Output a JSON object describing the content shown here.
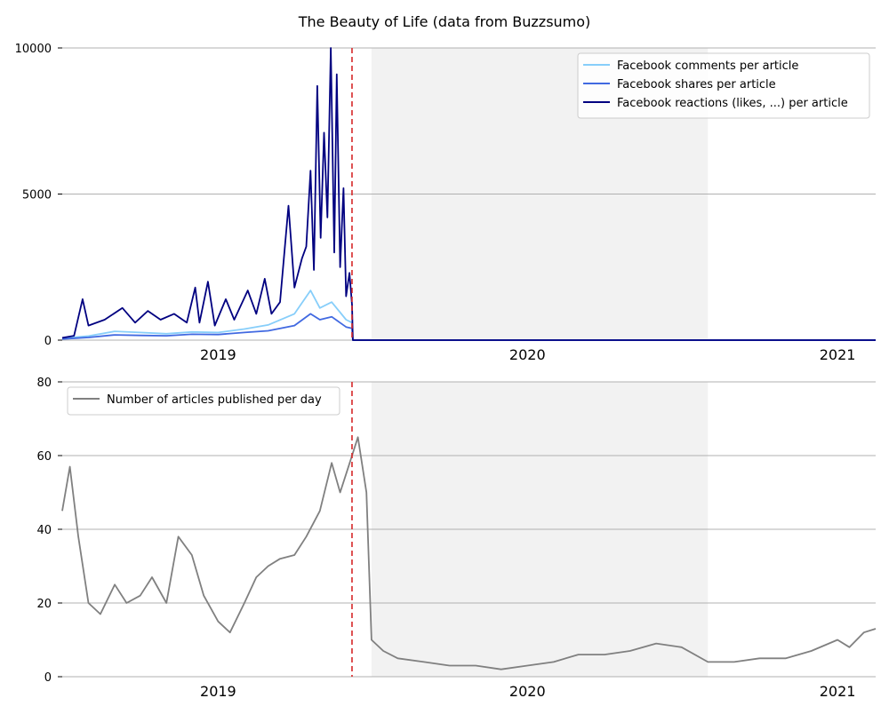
{
  "chart_data": {
    "title": "The Beauty of Life (data from Buzzsumo)",
    "x_tick_labels": [
      "2019",
      "2020",
      "2021"
    ],
    "x_tick_dates": [
      "2019-01-01",
      "2020-01-01",
      "2021-01-01"
    ],
    "x_range": [
      "2018-07-01",
      "2021-02-15"
    ],
    "vertical_marker_date": "2019-06-08",
    "shaded_period": [
      "2019-07-01",
      "2020-08-01"
    ],
    "colors": {
      "comments": "#87cefa",
      "shares": "#4169e1",
      "reactions": "#000080",
      "articles": "#808080",
      "marker": "#d62728",
      "shade": "#f2f2f2",
      "grid": "#b0b0b0"
    },
    "panels": [
      {
        "type": "line",
        "ylim": [
          0,
          10000
        ],
        "yticks": [
          0,
          5000,
          10000
        ],
        "yticklabels": [
          "0",
          "5000",
          "10000"
        ],
        "legend_position": "top-right",
        "series": [
          {
            "name": "Facebook comments per article",
            "key": "comments",
            "points": [
              [
                "2018-07-01",
                60
              ],
              [
                "2018-08-01",
                140
              ],
              [
                "2018-09-01",
                300
              ],
              [
                "2018-10-01",
                260
              ],
              [
                "2018-11-01",
                220
              ],
              [
                "2018-12-01",
                280
              ],
              [
                "2019-01-01",
                260
              ],
              [
                "2019-02-01",
                380
              ],
              [
                "2019-03-01",
                520
              ],
              [
                "2019-04-01",
                900
              ],
              [
                "2019-04-20",
                1700
              ],
              [
                "2019-05-01",
                1100
              ],
              [
                "2019-05-15",
                1300
              ],
              [
                "2019-06-01",
                700
              ],
              [
                "2019-06-08",
                600
              ],
              [
                "2019-06-09",
                0
              ],
              [
                "2021-02-15",
                0
              ]
            ]
          },
          {
            "name": "Facebook shares per article",
            "key": "shares",
            "points": [
              [
                "2018-07-01",
                40
              ],
              [
                "2018-08-01",
                90
              ],
              [
                "2018-09-01",
                180
              ],
              [
                "2018-10-01",
                160
              ],
              [
                "2018-11-01",
                150
              ],
              [
                "2018-12-01",
                200
              ],
              [
                "2019-01-01",
                190
              ],
              [
                "2019-02-01",
                260
              ],
              [
                "2019-03-01",
                320
              ],
              [
                "2019-04-01",
                500
              ],
              [
                "2019-04-20",
                900
              ],
              [
                "2019-05-01",
                700
              ],
              [
                "2019-05-15",
                800
              ],
              [
                "2019-06-01",
                450
              ],
              [
                "2019-06-08",
                400
              ],
              [
                "2019-06-09",
                0
              ],
              [
                "2021-02-15",
                0
              ]
            ]
          },
          {
            "name": "Facebook reactions (likes, ...) per article",
            "key": "reactions",
            "points": [
              [
                "2018-07-01",
                80
              ],
              [
                "2018-07-15",
                150
              ],
              [
                "2018-07-25",
                1400
              ],
              [
                "2018-08-01",
                500
              ],
              [
                "2018-08-20",
                700
              ],
              [
                "2018-09-10",
                1100
              ],
              [
                "2018-09-25",
                600
              ],
              [
                "2018-10-10",
                1000
              ],
              [
                "2018-10-25",
                700
              ],
              [
                "2018-11-10",
                900
              ],
              [
                "2018-11-25",
                600
              ],
              [
                "2018-12-05",
                1800
              ],
              [
                "2018-12-10",
                600
              ],
              [
                "2018-12-20",
                2000
              ],
              [
                "2018-12-28",
                500
              ],
              [
                "2019-01-10",
                1400
              ],
              [
                "2019-01-20",
                700
              ],
              [
                "2019-02-05",
                1700
              ],
              [
                "2019-02-15",
                900
              ],
              [
                "2019-02-25",
                2100
              ],
              [
                "2019-03-05",
                900
              ],
              [
                "2019-03-15",
                1300
              ],
              [
                "2019-03-25",
                4600
              ],
              [
                "2019-04-01",
                1800
              ],
              [
                "2019-04-10",
                2800
              ],
              [
                "2019-04-15",
                3200
              ],
              [
                "2019-04-20",
                5800
              ],
              [
                "2019-04-24",
                2400
              ],
              [
                "2019-04-28",
                8700
              ],
              [
                "2019-05-02",
                3500
              ],
              [
                "2019-05-06",
                7100
              ],
              [
                "2019-05-10",
                4200
              ],
              [
                "2019-05-14",
                10000
              ],
              [
                "2019-05-18",
                3000
              ],
              [
                "2019-05-21",
                9100
              ],
              [
                "2019-05-25",
                2500
              ],
              [
                "2019-05-29",
                5200
              ],
              [
                "2019-06-01",
                1500
              ],
              [
                "2019-06-05",
                2300
              ],
              [
                "2019-06-08",
                1200
              ],
              [
                "2019-06-09",
                0
              ],
              [
                "2021-02-15",
                0
              ]
            ]
          }
        ]
      },
      {
        "type": "line",
        "ylim": [
          0,
          80
        ],
        "yticks": [
          0,
          20,
          40,
          60,
          80
        ],
        "yticklabels": [
          "0",
          "20",
          "40",
          "60",
          "80"
        ],
        "legend_position": "top-left",
        "series": [
          {
            "name": "Number of articles published per day",
            "key": "articles",
            "points": [
              [
                "2018-07-01",
                45
              ],
              [
                "2018-07-10",
                57
              ],
              [
                "2018-07-20",
                38
              ],
              [
                "2018-08-01",
                20
              ],
              [
                "2018-08-15",
                17
              ],
              [
                "2018-09-01",
                25
              ],
              [
                "2018-09-15",
                20
              ],
              [
                "2018-10-01",
                22
              ],
              [
                "2018-10-15",
                27
              ],
              [
                "2018-11-01",
                20
              ],
              [
                "2018-11-15",
                38
              ],
              [
                "2018-12-01",
                33
              ],
              [
                "2018-12-15",
                22
              ],
              [
                "2019-01-01",
                15
              ],
              [
                "2019-01-15",
                12
              ],
              [
                "2019-02-01",
                20
              ],
              [
                "2019-02-15",
                27
              ],
              [
                "2019-03-01",
                30
              ],
              [
                "2019-03-15",
                32
              ],
              [
                "2019-04-01",
                33
              ],
              [
                "2019-04-15",
                38
              ],
              [
                "2019-05-01",
                45
              ],
              [
                "2019-05-15",
                58
              ],
              [
                "2019-05-25",
                50
              ],
              [
                "2019-06-01",
                55
              ],
              [
                "2019-06-08",
                60
              ],
              [
                "2019-06-15",
                65
              ],
              [
                "2019-06-25",
                50
              ],
              [
                "2019-07-01",
                10
              ],
              [
                "2019-07-15",
                7
              ],
              [
                "2019-08-01",
                5
              ],
              [
                "2019-09-01",
                4
              ],
              [
                "2019-10-01",
                3
              ],
              [
                "2019-11-01",
                3
              ],
              [
                "2019-12-01",
                2
              ],
              [
                "2020-01-01",
                3
              ],
              [
                "2020-02-01",
                4
              ],
              [
                "2020-03-01",
                6
              ],
              [
                "2020-04-01",
                6
              ],
              [
                "2020-05-01",
                7
              ],
              [
                "2020-06-01",
                9
              ],
              [
                "2020-07-01",
                8
              ],
              [
                "2020-08-01",
                4
              ],
              [
                "2020-09-01",
                4
              ],
              [
                "2020-10-01",
                5
              ],
              [
                "2020-11-01",
                5
              ],
              [
                "2020-12-01",
                7
              ],
              [
                "2021-01-01",
                10
              ],
              [
                "2021-01-15",
                8
              ],
              [
                "2021-02-01",
                12
              ],
              [
                "2021-02-15",
                13
              ]
            ]
          }
        ]
      }
    ]
  }
}
